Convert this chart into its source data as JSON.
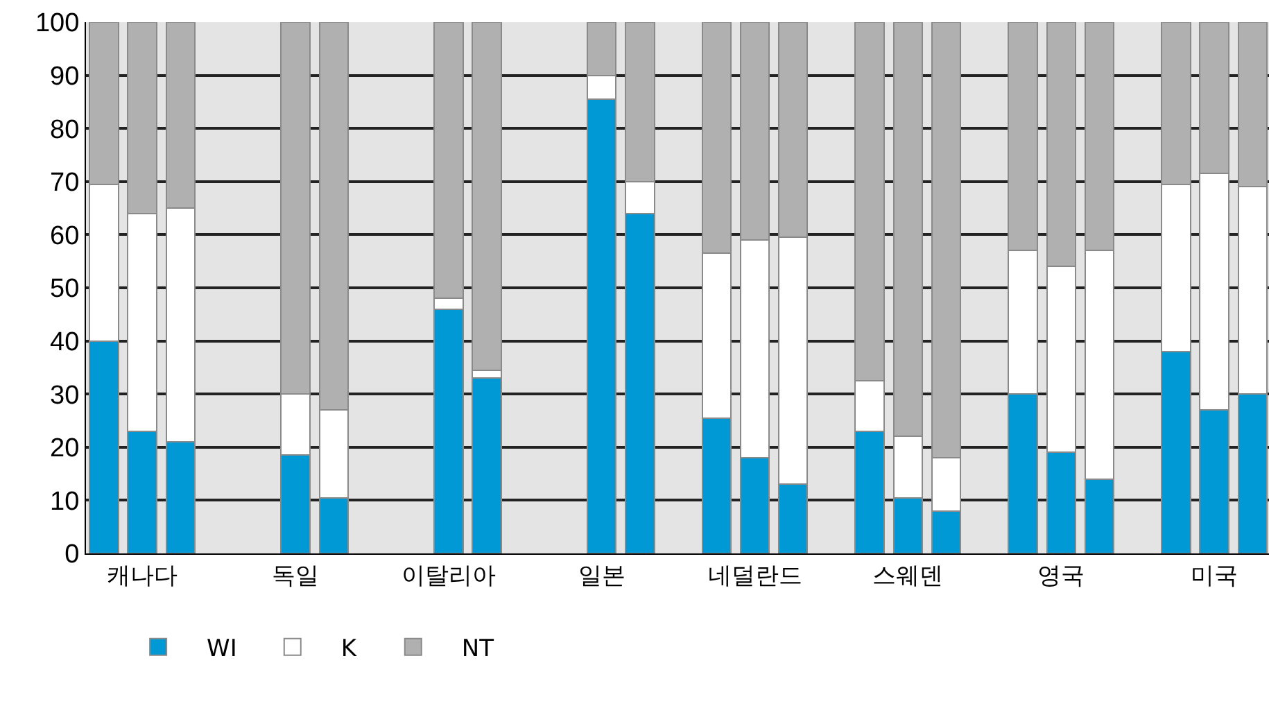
{
  "chart_data": {
    "type": "bar",
    "stacked": true,
    "categories": [
      null,
      "캐나다",
      null,
      null,
      null,
      "독일",
      null,
      null,
      null,
      "이탈리아",
      null,
      null,
      null,
      "일본",
      null,
      null,
      null,
      "네덜란드",
      null,
      null,
      null,
      "스웨덴",
      null,
      null,
      null,
      "영국",
      null,
      null,
      null,
      "미국",
      null
    ],
    "series": [
      {
        "name": "WI",
        "color": "#0099d6",
        "values": [
          40,
          23,
          21,
          null,
          null,
          18.5,
          10.5,
          null,
          null,
          46,
          33,
          null,
          null,
          85.5,
          64,
          null,
          25.5,
          18,
          13,
          null,
          23,
          10.5,
          8,
          null,
          30,
          19,
          14,
          null,
          38,
          27,
          30
        ]
      },
      {
        "name": "K",
        "color": "#ffffff",
        "values": [
          29.5,
          41,
          44,
          null,
          null,
          11.5,
          16.5,
          null,
          null,
          2,
          1.5,
          null,
          null,
          4.5,
          6,
          null,
          31,
          41,
          46.5,
          null,
          9.5,
          11.5,
          10,
          null,
          27,
          35,
          43,
          null,
          31.5,
          44.5,
          39
        ]
      },
      {
        "name": "NT",
        "color": "#b0b0b0",
        "values": [
          30.5,
          36,
          35,
          null,
          null,
          70,
          73,
          null,
          null,
          52,
          65.5,
          null,
          null,
          10,
          30,
          null,
          43.5,
          41,
          40.5,
          null,
          67.5,
          78,
          82,
          null,
          43,
          46,
          43,
          null,
          30.5,
          28.5,
          31
        ]
      }
    ],
    "ylim": [
      0,
      100
    ],
    "yticks": [
      0,
      10,
      20,
      30,
      40,
      50,
      60,
      70,
      80,
      90,
      100
    ],
    "grid": "y",
    "legend": "bottom left"
  }
}
